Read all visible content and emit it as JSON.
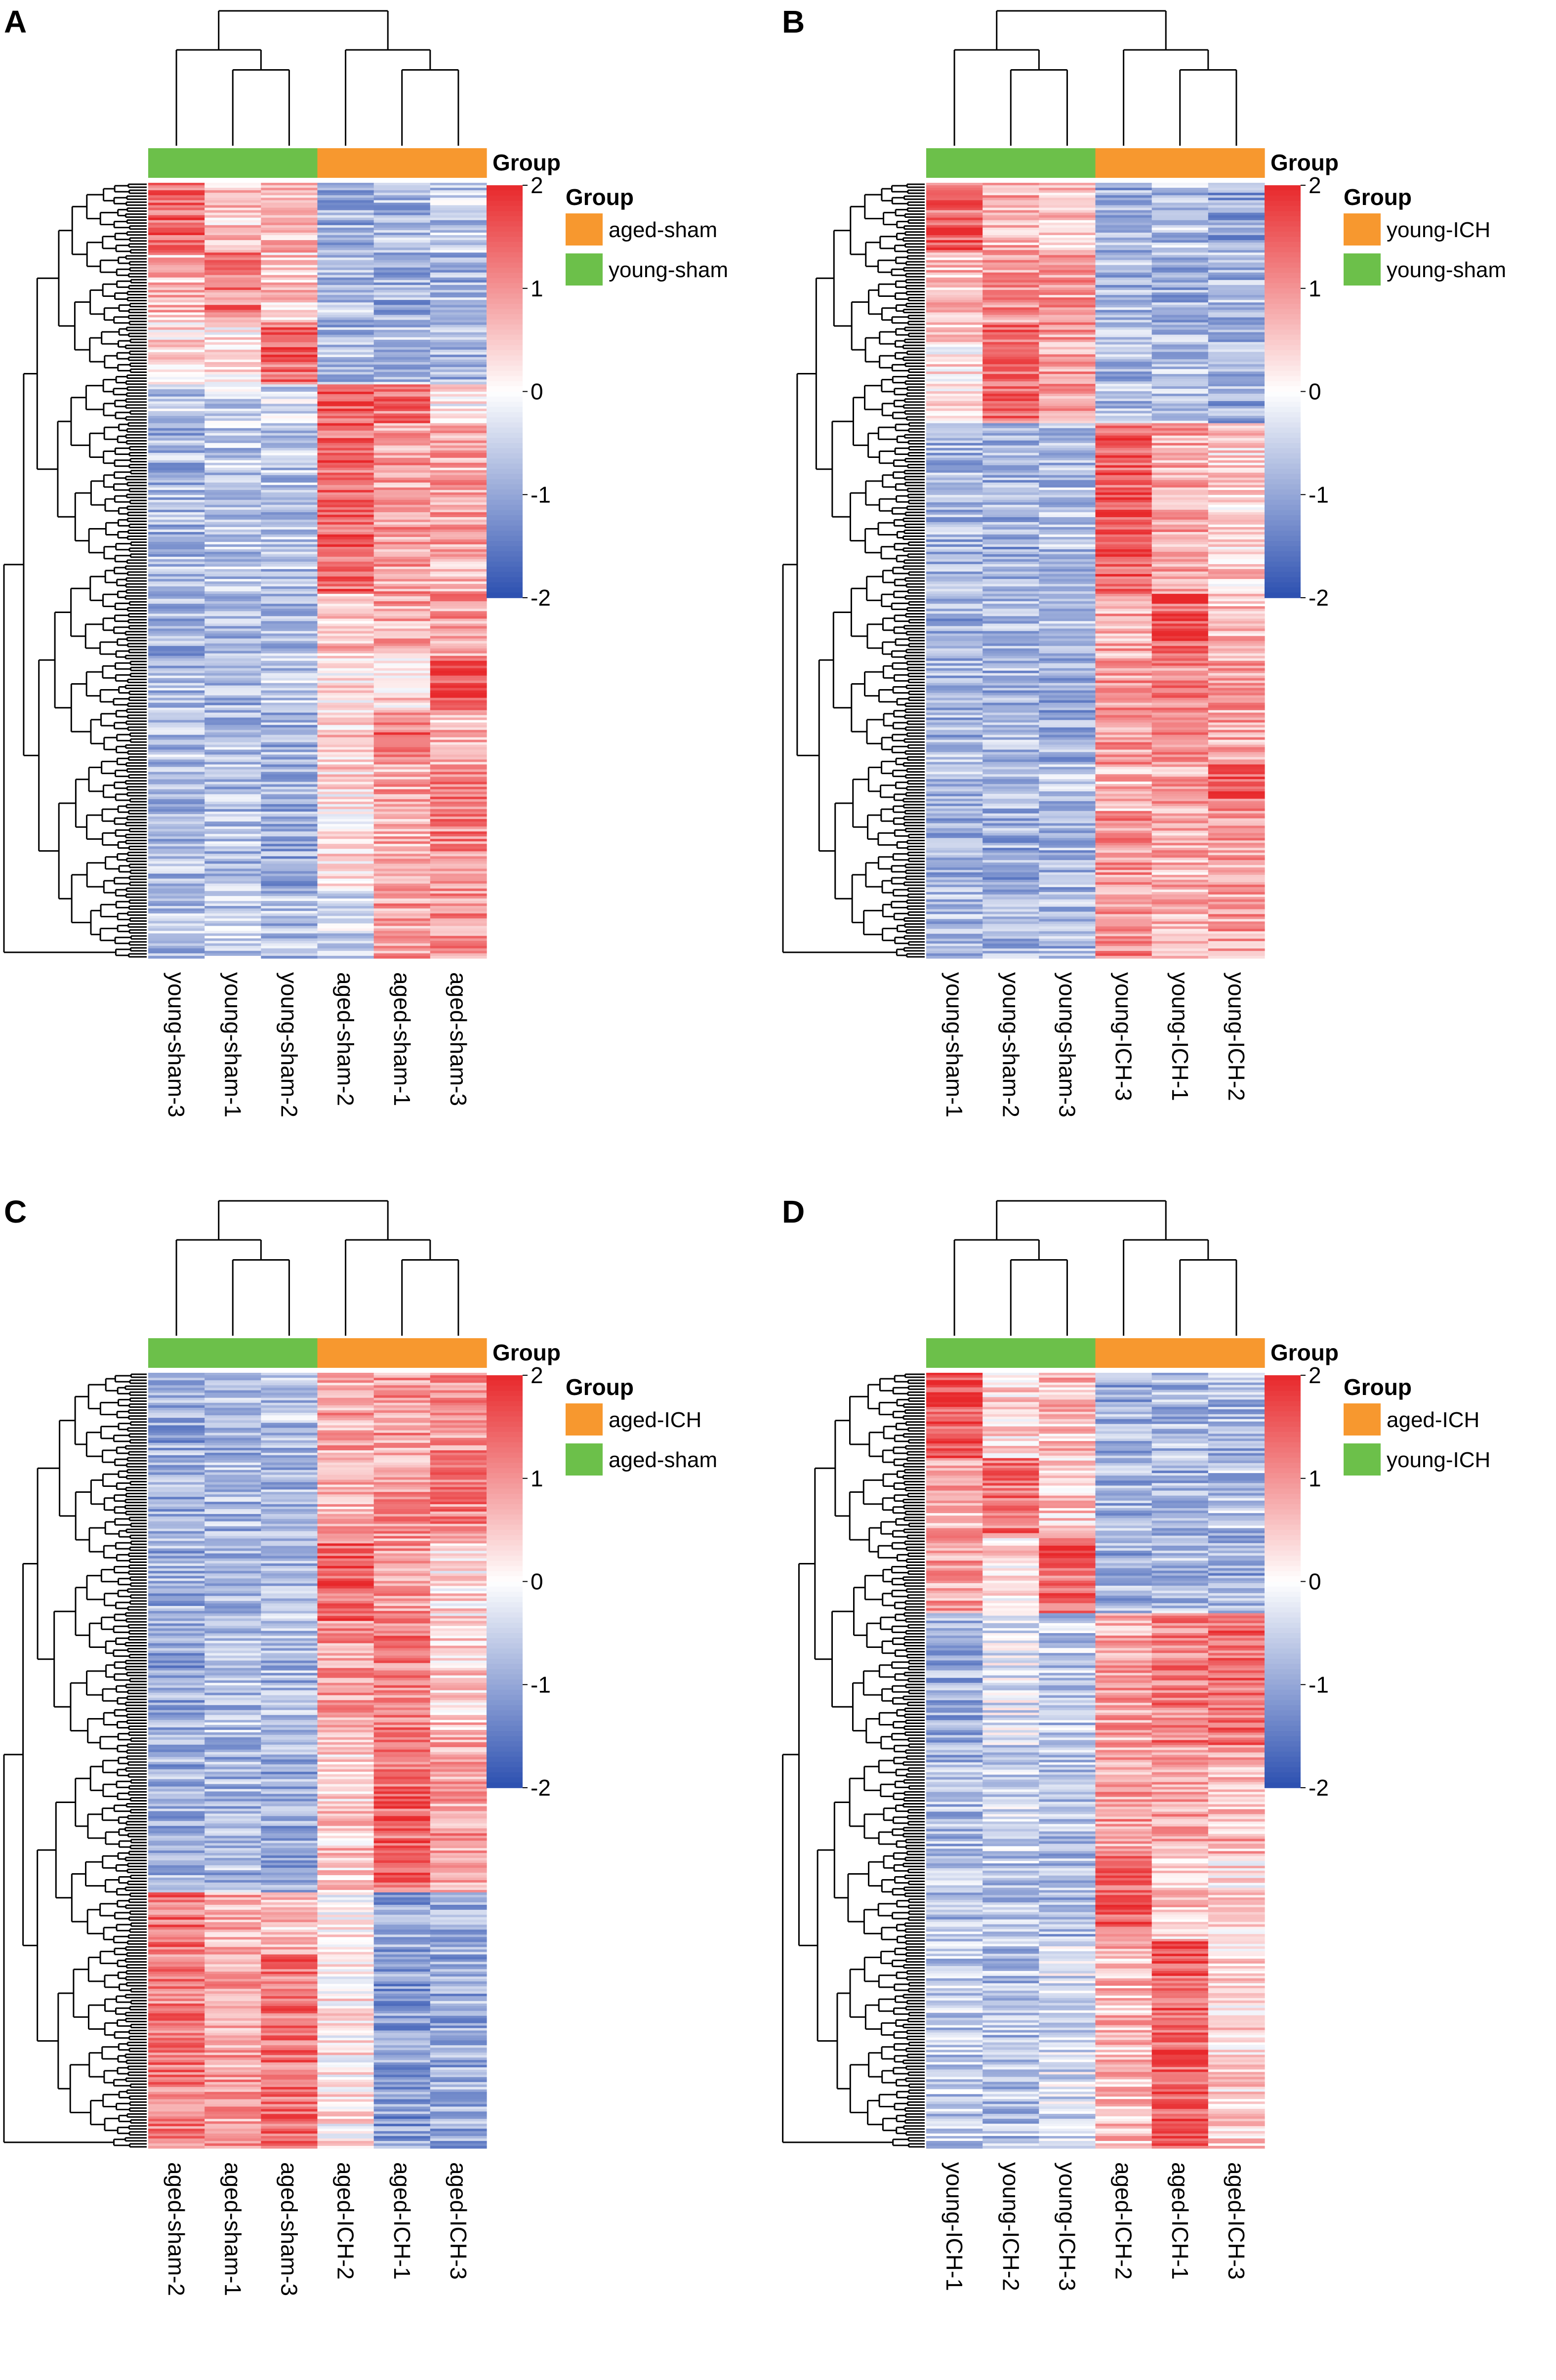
{
  "figure": {
    "colors": {
      "low": "#2b4fb0",
      "mid": "#ffffff",
      "high": "#e8282b",
      "dendrogram": "#000000"
    },
    "colorbar_ticks": [
      "2",
      "1",
      "0",
      "-1",
      "-2"
    ],
    "annotation_title": "Group"
  },
  "chart_data": [
    {
      "type": "heatmap",
      "panel": "A",
      "columns": [
        "young-sham-3",
        "young-sham-1",
        "young-sham-2",
        "aged-sham-2",
        "aged-sham-1",
        "aged-sham-3"
      ],
      "column_groups": [
        "young-sham",
        "young-sham",
        "young-sham",
        "aged-sham",
        "aged-sham",
        "aged-sham"
      ],
      "legend": [
        {
          "label": "aged-sham",
          "color": "#f7982f"
        },
        {
          "label": "young-sham",
          "color": "#6cc04a"
        }
      ],
      "scale": [
        -2,
        2
      ],
      "column_dendrogram": "((young-sham-3,(young-sham-1,young-sham-2)),(aged-sham-2,(aged-sham-1,aged-sham-3)))",
      "row_blocks": [
        {
          "fraction": 0.09,
          "values": [
            1.4,
            0.5,
            0.7,
            -0.9,
            -0.8,
            -0.6
          ]
        },
        {
          "fraction": 0.09,
          "values": [
            0.6,
            1.2,
            0.5,
            -0.7,
            -0.9,
            -0.8
          ]
        },
        {
          "fraction": 0.08,
          "values": [
            0.3,
            0.2,
            1.4,
            -0.8,
            -0.7,
            -0.9
          ]
        },
        {
          "fraction": 0.05,
          "values": [
            -0.6,
            -0.5,
            -0.4,
            1.5,
            1.3,
            0.1
          ]
        },
        {
          "fraction": 0.22,
          "values": [
            -0.8,
            -0.6,
            -0.7,
            1.4,
            0.9,
            0.8
          ]
        },
        {
          "fraction": 0.08,
          "values": [
            -0.9,
            -0.7,
            -0.8,
            0.6,
            0.8,
            0.9
          ]
        },
        {
          "fraction": 0.07,
          "values": [
            -0.7,
            -0.8,
            -0.6,
            0.3,
            0.4,
            1.7
          ]
        },
        {
          "fraction": 0.07,
          "values": [
            -0.7,
            -0.7,
            -0.8,
            0.5,
            1.3,
            0.6
          ]
        },
        {
          "fraction": 0.16,
          "values": [
            -0.8,
            -0.7,
            -0.9,
            0.3,
            0.8,
            1.1
          ]
        },
        {
          "fraction": 0.09,
          "values": [
            -0.7,
            -0.6,
            -0.7,
            -0.5,
            0.9,
            1.0
          ]
        }
      ]
    },
    {
      "type": "heatmap",
      "panel": "B",
      "columns": [
        "young-sham-1",
        "young-sham-2",
        "young-sham-3",
        "young-ICH-3",
        "young-ICH-1",
        "young-ICH-2"
      ],
      "column_groups": [
        "young-sham",
        "young-sham",
        "young-sham",
        "young-ICH",
        "young-ICH",
        "young-ICH"
      ],
      "legend": [
        {
          "label": "young-ICH",
          "color": "#f7982f"
        },
        {
          "label": "young-sham",
          "color": "#6cc04a"
        }
      ],
      "scale": [
        -2,
        2
      ],
      "column_dendrogram": "((young-sham-1,(young-sham-2,young-sham-3)),(young-ICH-3,(young-ICH-1,young-ICH-2)))",
      "row_blocks": [
        {
          "fraction": 0.09,
          "values": [
            1.4,
            0.7,
            0.6,
            -0.9,
            -0.7,
            -1.0
          ]
        },
        {
          "fraction": 0.09,
          "values": [
            0.6,
            1.0,
            0.9,
            -0.8,
            -0.9,
            -0.8
          ]
        },
        {
          "fraction": 0.13,
          "values": [
            0.3,
            1.3,
            0.9,
            -0.8,
            -0.7,
            -0.9
          ]
        },
        {
          "fraction": 0.22,
          "values": [
            -0.8,
            -0.9,
            -0.7,
            1.5,
            0.8,
            0.4
          ]
        },
        {
          "fraction": 0.08,
          "values": [
            -0.9,
            -0.7,
            -0.8,
            0.8,
            1.5,
            0.6
          ]
        },
        {
          "fraction": 0.14,
          "values": [
            -0.8,
            -0.8,
            -0.9,
            0.9,
            1.1,
            0.8
          ]
        },
        {
          "fraction": 0.06,
          "values": [
            -0.7,
            -0.8,
            -0.7,
            0.6,
            0.8,
            1.4
          ]
        },
        {
          "fraction": 0.19,
          "values": [
            -0.8,
            -0.9,
            -0.8,
            1.0,
            0.7,
            0.9
          ]
        }
      ]
    },
    {
      "type": "heatmap",
      "panel": "C",
      "columns": [
        "aged-sham-2",
        "aged-sham-1",
        "aged-sham-3",
        "aged-ICH-2",
        "aged-ICH-1",
        "aged-ICH-3"
      ],
      "column_groups": [
        "aged-sham",
        "aged-sham",
        "aged-sham",
        "aged-ICH",
        "aged-ICH",
        "aged-ICH"
      ],
      "legend": [
        {
          "label": "aged-ICH",
          "color": "#f7982f"
        },
        {
          "label": "aged-sham",
          "color": "#6cc04a"
        }
      ],
      "scale": [
        -2,
        2
      ],
      "column_dendrogram": "((aged-sham-2,(aged-sham-1,aged-sham-3)),(aged-ICH-2,(aged-ICH-1,aged-ICH-3)))",
      "row_blocks": [
        {
          "fraction": 0.1,
          "values": [
            -1.0,
            -0.8,
            -0.7,
            0.8,
            0.9,
            1.0
          ]
        },
        {
          "fraction": 0.12,
          "values": [
            -0.9,
            -0.8,
            -0.8,
            0.7,
            0.9,
            1.1
          ]
        },
        {
          "fraction": 0.1,
          "values": [
            -0.9,
            -0.9,
            -0.7,
            1.5,
            1.0,
            0.3
          ]
        },
        {
          "fraction": 0.15,
          "values": [
            -1.0,
            -0.7,
            -0.8,
            0.9,
            1.2,
            0.5
          ]
        },
        {
          "fraction": 0.2,
          "values": [
            -0.9,
            -0.8,
            -0.9,
            0.5,
            1.4,
            0.9
          ]
        },
        {
          "fraction": 0.08,
          "values": [
            1.3,
            0.8,
            0.5,
            0.1,
            -1.0,
            -0.9
          ]
        },
        {
          "fraction": 0.25,
          "values": [
            1.2,
            0.9,
            1.3,
            0.2,
            -1.1,
            -0.9
          ]
        }
      ]
    },
    {
      "type": "heatmap",
      "panel": "D",
      "columns": [
        "young-ICH-1",
        "young-ICH-2",
        "young-ICH-3",
        "aged-ICH-2",
        "aged-ICH-1",
        "aged-ICH-3"
      ],
      "column_groups": [
        "young-ICH",
        "young-ICH",
        "young-ICH",
        "aged-ICH",
        "aged-ICH",
        "aged-ICH"
      ],
      "legend": [
        {
          "label": "aged-ICH",
          "color": "#f7982f"
        },
        {
          "label": "young-ICH",
          "color": "#6cc04a"
        }
      ],
      "scale": [
        -2,
        2
      ],
      "column_dendrogram": "((young-ICH-1,(young-ICH-2,young-ICH-3)),(aged-ICH-2,(aged-ICH-1,aged-ICH-3)))",
      "row_blocks": [
        {
          "fraction": 0.11,
          "values": [
            1.5,
            0.4,
            0.6,
            -0.9,
            -0.8,
            -0.8
          ]
        },
        {
          "fraction": 0.1,
          "values": [
            0.7,
            1.3,
            0.5,
            -0.8,
            -0.9,
            -0.7
          ]
        },
        {
          "fraction": 0.1,
          "values": [
            0.8,
            0.3,
            1.4,
            -0.9,
            -0.7,
            -0.9
          ]
        },
        {
          "fraction": 0.17,
          "values": [
            -0.9,
            -0.3,
            -0.6,
            0.8,
            1.2,
            1.3
          ]
        },
        {
          "fraction": 0.14,
          "values": [
            -0.8,
            -0.5,
            -0.7,
            0.9,
            0.8,
            0.7
          ]
        },
        {
          "fraction": 0.11,
          "values": [
            -0.7,
            -0.6,
            -0.8,
            1.5,
            0.5,
            0.3
          ]
        },
        {
          "fraction": 0.27,
          "values": [
            -0.6,
            -0.7,
            -0.4,
            0.6,
            1.5,
            0.4
          ]
        }
      ]
    }
  ]
}
